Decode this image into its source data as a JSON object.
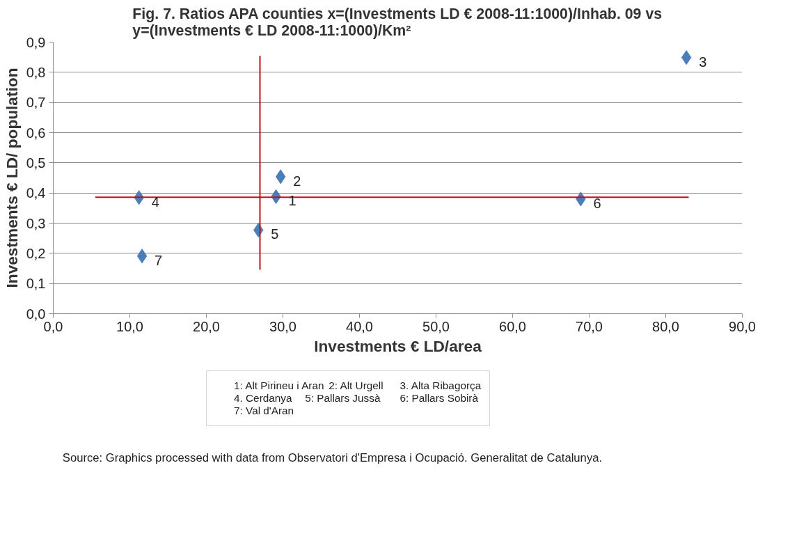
{
  "chart_data": {
    "type": "scatter",
    "title": "Fig. 7. Ratios APA counties x=(Investments LD € 2008-11:1000)/Inhab. 09 vs\ny=(Investments € LD 2008-11:1000)/Km²",
    "xlabel": "Investments € LD/area",
    "ylabel": "Investments € LD/ population",
    "xlim": [
      0,
      90
    ],
    "ylim": [
      0,
      0.9
    ],
    "xticks": [
      {
        "value": 0,
        "label": "0,0"
      },
      {
        "value": 10,
        "label": "10,0"
      },
      {
        "value": 20,
        "label": "20,0"
      },
      {
        "value": 30,
        "label": "30,0"
      },
      {
        "value": 40,
        "label": "40,0"
      },
      {
        "value": 50,
        "label": "50,0"
      },
      {
        "value": 60,
        "label": "60,0"
      },
      {
        "value": 70,
        "label": "70,0"
      },
      {
        "value": 80,
        "label": "80,0"
      },
      {
        "value": 90,
        "label": "90,0"
      }
    ],
    "yticks": [
      {
        "value": 0,
        "label": "0,0"
      },
      {
        "value": 0.1,
        "label": "0,1"
      },
      {
        "value": 0.2,
        "label": "0,2"
      },
      {
        "value": 0.3,
        "label": "0,3"
      },
      {
        "value": 0.4,
        "label": "0,4"
      },
      {
        "value": 0.5,
        "label": "0,5"
      },
      {
        "value": 0.6,
        "label": "0,6"
      },
      {
        "value": 0.7,
        "label": "0,7"
      },
      {
        "value": 0.8,
        "label": "0,8"
      },
      {
        "value": 0.9,
        "label": "0,9"
      }
    ],
    "grid": "y",
    "legend": "bottom",
    "series": [
      {
        "marker": "diamond",
        "name": "1: Alt Pirineu i Aran\t2: Alt Urgell\t3. Alta Ribagorça\n4. Cerdanya\t5: Pallars Jussà\t6: Pallars Sobirà\n7: Val d'Aran",
        "color": "#4a7ebb",
        "x": [
          29.1,
          29.7,
          82.7,
          11.2,
          26.8,
          68.9,
          11.6
        ],
        "values": [
          0.388,
          0.454,
          0.849,
          0.385,
          0.277,
          0.38,
          0.191
        ]
      },
      {
        "type": "line",
        "color": "#c0111f",
        "x": [
          5.5,
          83.0
        ],
        "values": [
          0.386,
          0.386
        ]
      },
      {
        "type": "line",
        "color": "#c0111f",
        "x": [
          27.0,
          27.0
        ],
        "values": [
          0.146,
          0.855
        ]
      }
    ],
    "annotations": [
      {
        "text": "1",
        "x": 29.1,
        "y": 0.388
      },
      {
        "text": "2",
        "x": 29.7,
        "y": 0.454
      },
      {
        "text": "3",
        "x": 82.7,
        "y": 0.849
      },
      {
        "text": "4",
        "x": 11.2,
        "y": 0.385
      },
      {
        "text": "5",
        "x": 26.8,
        "y": 0.277
      },
      {
        "text": "6",
        "x": 68.9,
        "y": 0.38
      },
      {
        "text": "7",
        "x": 11.6,
        "y": 0.191
      },
      "Source: Graphics processed with data from Observatori d'Empresa i Ocupació. Generalitat de Catalunya."
    ]
  }
}
